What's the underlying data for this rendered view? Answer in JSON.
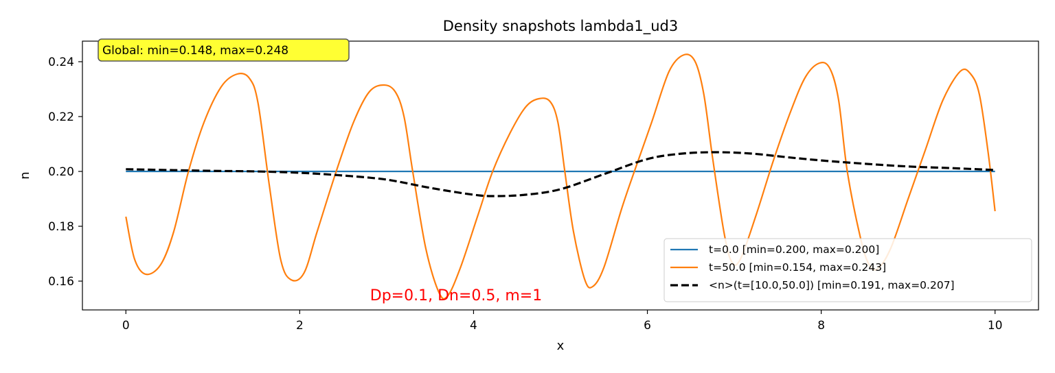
{
  "chart_data": {
    "type": "line",
    "title": "Density snapshots  lambda1_ud3",
    "xlabel": "x",
    "ylabel": "n",
    "xlim": [
      -0.5,
      10.5
    ],
    "ylim": [
      0.1495,
      0.2475
    ],
    "x_ticks": [
      0,
      2,
      4,
      6,
      8,
      10
    ],
    "x_tick_labels": [
      "0",
      "2",
      "4",
      "6",
      "8",
      "10"
    ],
    "y_ticks": [
      0.16,
      0.18,
      0.2,
      0.22,
      0.24
    ],
    "y_tick_labels": [
      "0.16",
      "0.18",
      "0.20",
      "0.22",
      "0.24"
    ],
    "grid": false,
    "legend_position": "lower-right",
    "series": [
      {
        "name": "t=0.0 [min=0.200, max=0.200]",
        "color": "#1f77b4",
        "style": "solid",
        "points": [
          [
            0,
            0.2
          ],
          [
            10,
            0.2
          ]
        ]
      },
      {
        "name": "t=50.0 [min=0.154, max=0.243]",
        "color": "#ff7f0e",
        "style": "solid",
        "points": [
          [
            0,
            0.1835
          ],
          [
            0.1,
            0.168
          ],
          [
            0.23,
            0.1625
          ],
          [
            0.4,
            0.166
          ],
          [
            0.55,
            0.178
          ],
          [
            0.72,
            0.2
          ],
          [
            0.9,
            0.218
          ],
          [
            1.1,
            0.231
          ],
          [
            1.28,
            0.2355
          ],
          [
            1.42,
            0.234
          ],
          [
            1.52,
            0.225
          ],
          [
            1.65,
            0.195
          ],
          [
            1.78,
            0.168
          ],
          [
            1.9,
            0.1605
          ],
          [
            2.05,
            0.163
          ],
          [
            2.2,
            0.178
          ],
          [
            2.42,
            0.2
          ],
          [
            2.62,
            0.218
          ],
          [
            2.8,
            0.229
          ],
          [
            2.97,
            0.2315
          ],
          [
            3.1,
            0.229
          ],
          [
            3.2,
            0.22
          ],
          [
            3.3,
            0.2
          ],
          [
            3.45,
            0.172
          ],
          [
            3.6,
            0.156
          ],
          [
            3.7,
            0.1545
          ],
          [
            3.85,
            0.165
          ],
          [
            4.05,
            0.184
          ],
          [
            4.22,
            0.2
          ],
          [
            4.42,
            0.214
          ],
          [
            4.6,
            0.2235
          ],
          [
            4.75,
            0.2265
          ],
          [
            4.88,
            0.2255
          ],
          [
            4.97,
            0.218
          ],
          [
            5.05,
            0.2
          ],
          [
            5.15,
            0.178
          ],
          [
            5.28,
            0.1605
          ],
          [
            5.37,
            0.158
          ],
          [
            5.5,
            0.165
          ],
          [
            5.7,
            0.186
          ],
          [
            5.85,
            0.2
          ],
          [
            6.05,
            0.218
          ],
          [
            6.25,
            0.2365
          ],
          [
            6.42,
            0.2425
          ],
          [
            6.55,
            0.24
          ],
          [
            6.65,
            0.228
          ],
          [
            6.75,
            0.205
          ],
          [
            6.88,
            0.178
          ],
          [
            6.97,
            0.167
          ],
          [
            7.07,
            0.168
          ],
          [
            7.25,
            0.184
          ],
          [
            7.45,
            0.204
          ],
          [
            7.65,
            0.222
          ],
          [
            7.82,
            0.2345
          ],
          [
            7.98,
            0.2395
          ],
          [
            8.1,
            0.2375
          ],
          [
            8.2,
            0.226
          ],
          [
            8.3,
            0.2
          ],
          [
            8.45,
            0.176
          ],
          [
            8.55,
            0.166
          ],
          [
            8.65,
            0.1645
          ],
          [
            8.8,
            0.172
          ],
          [
            9.0,
            0.19
          ],
          [
            9.2,
            0.208
          ],
          [
            9.4,
            0.226
          ],
          [
            9.6,
            0.2365
          ],
          [
            9.72,
            0.2355
          ],
          [
            9.82,
            0.228
          ],
          [
            9.92,
            0.207
          ],
          [
            10.0,
            0.1855
          ]
        ]
      },
      {
        "name": "<n>(t=[10.0,50.0]) [min=0.191, max=0.207]",
        "color": "#000000",
        "style": "dashed",
        "points": [
          [
            0,
            0.2008
          ],
          [
            0.5,
            0.2005
          ],
          [
            1.0,
            0.2002
          ],
          [
            1.5,
            0.2
          ],
          [
            2.0,
            0.1995
          ],
          [
            2.5,
            0.1985
          ],
          [
            3.0,
            0.197
          ],
          [
            3.5,
            0.194
          ],
          [
            4.0,
            0.1915
          ],
          [
            4.25,
            0.191
          ],
          [
            4.6,
            0.1915
          ],
          [
            5.0,
            0.1935
          ],
          [
            5.5,
            0.199
          ],
          [
            6.0,
            0.2045
          ],
          [
            6.4,
            0.2065
          ],
          [
            6.8,
            0.207
          ],
          [
            7.2,
            0.2065
          ],
          [
            7.6,
            0.2052
          ],
          [
            8.0,
            0.204
          ],
          [
            8.5,
            0.2028
          ],
          [
            9.0,
            0.2018
          ],
          [
            9.5,
            0.2012
          ],
          [
            10.0,
            0.2005
          ]
        ]
      }
    ],
    "annotations": {
      "global_box": "Global: min=0.148, max=0.248",
      "params": "Dp=0.1, Dn=0.5, m=1",
      "params_color": "#ff0000",
      "global_box_fill": "#ffff33"
    }
  }
}
